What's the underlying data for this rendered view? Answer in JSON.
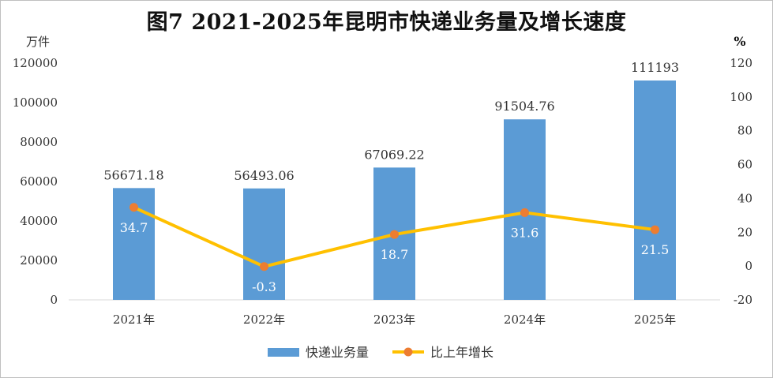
{
  "title": "图7 2021-2025年昆明市快递业务量及增长速度",
  "chart_data": {
    "type": "bar+line",
    "categories": [
      "2021年",
      "2022年",
      "2023年",
      "2024年",
      "2025年"
    ],
    "bar_series": {
      "name": "快递业务量",
      "values": [
        56671.18,
        56493.06,
        67069.22,
        91504.76,
        111193
      ],
      "labels": [
        "56671.18",
        "56493.06",
        "67069.22",
        "91504.76",
        "111193"
      ],
      "color": "#5b9bd5"
    },
    "line_series": {
      "name": "比上年增长",
      "values": [
        34.7,
        -0.3,
        18.7,
        31.6,
        21.5
      ],
      "labels": [
        "34.7",
        "-0.3",
        "18.7",
        "31.6",
        "21.5"
      ],
      "line_color": "#ffc000",
      "marker_color": "#ed7d31"
    },
    "y_left": {
      "unit": "万件",
      "ylim": [
        0,
        120000
      ],
      "ticks": [
        "120000",
        "100000",
        "80000",
        "60000",
        "40000",
        "20000",
        "0"
      ]
    },
    "y_right": {
      "unit": "%",
      "ylim": [
        -20,
        120
      ],
      "ticks": [
        "120",
        "100",
        "80",
        "60",
        "40",
        "20",
        "0",
        "-20"
      ]
    },
    "grid": false,
    "legend_position": "bottom"
  }
}
